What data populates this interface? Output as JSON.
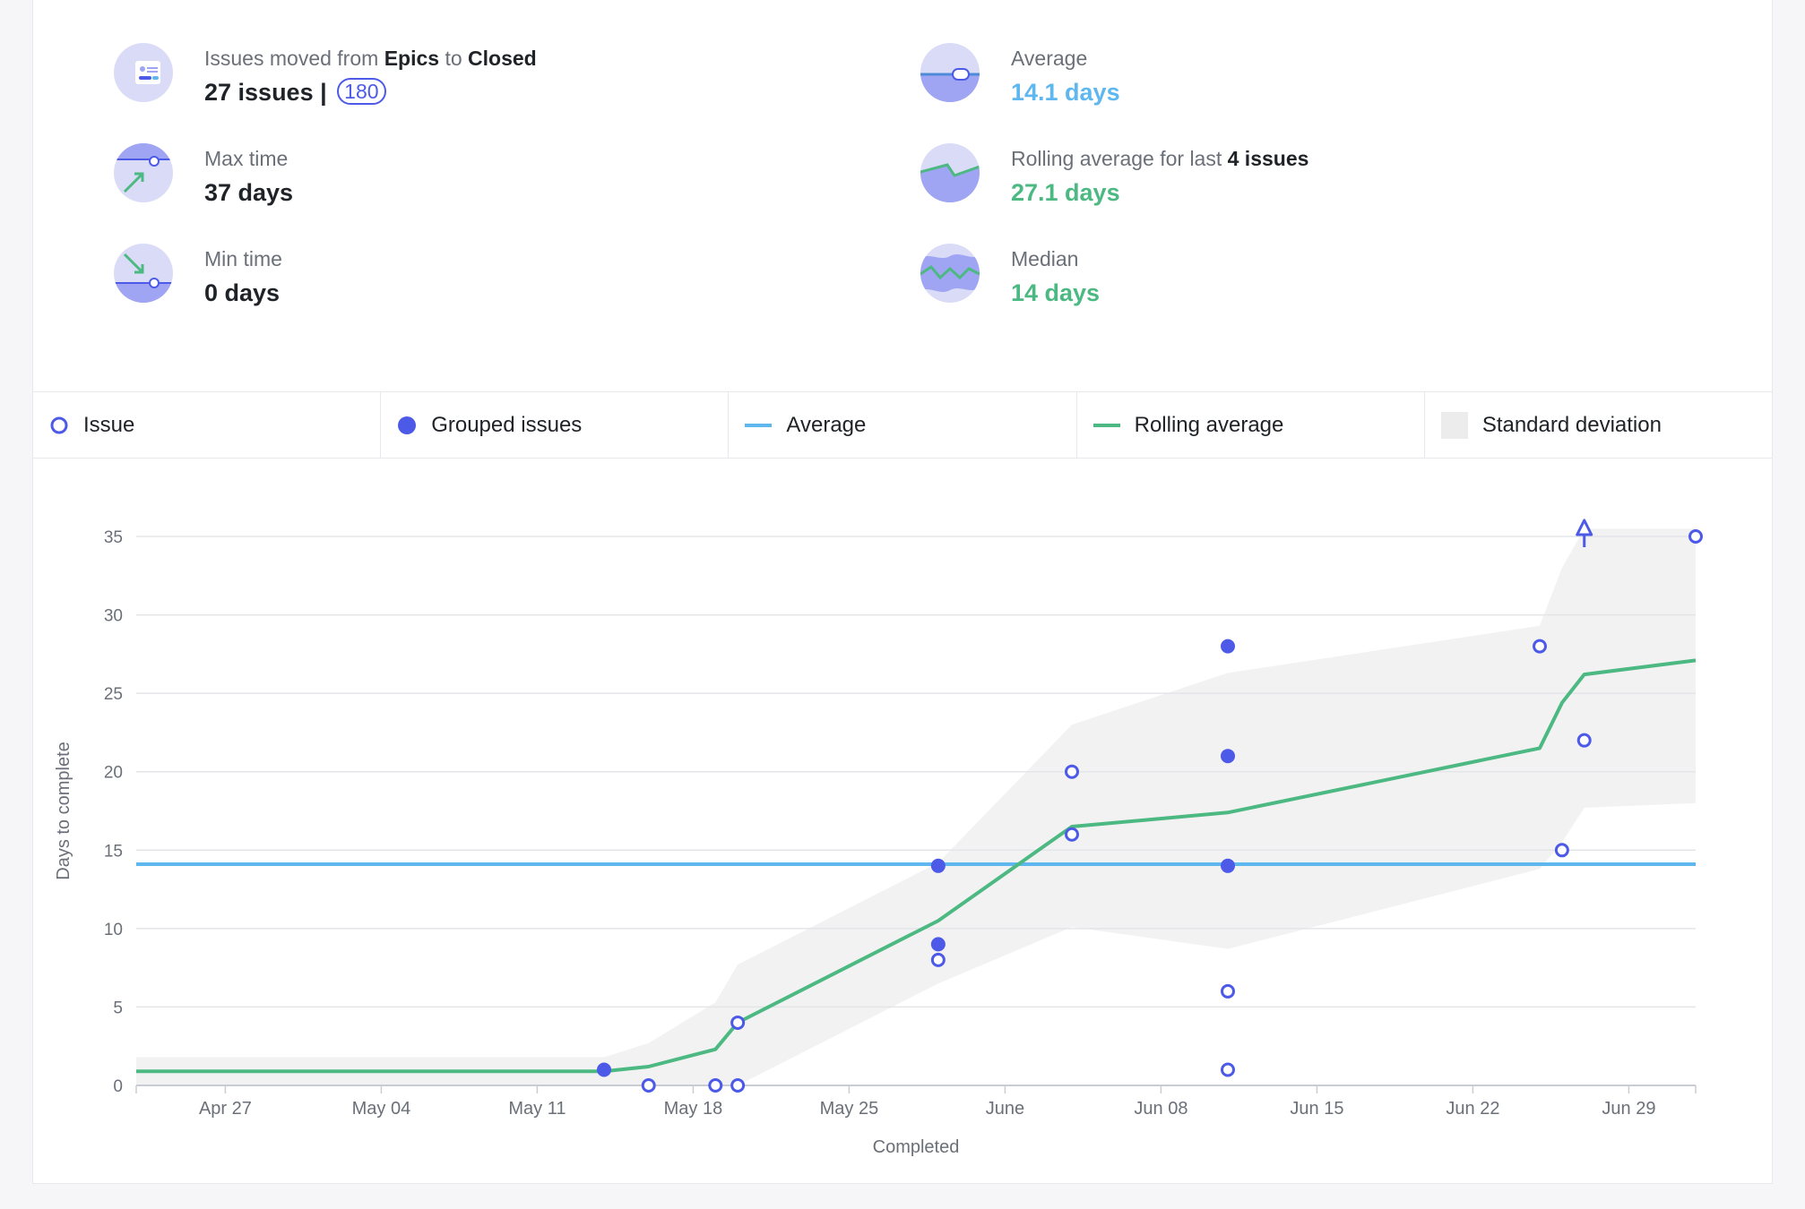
{
  "stats": {
    "moved": {
      "label_pre": "Issues moved from ",
      "label_from": "Epics",
      "label_mid": " to ",
      "label_to": "Closed",
      "value": "27 issues |",
      "badge": "180"
    },
    "max": {
      "label": "Max time",
      "value": "37 days"
    },
    "min": {
      "label": "Min time",
      "value": "0 days"
    },
    "average": {
      "label": "Average",
      "value": "14.1 days"
    },
    "rolling": {
      "label_pre": "Rolling average for last ",
      "label_bold": "4 issues",
      "value": "27.1 days"
    },
    "median": {
      "label": "Median",
      "value": "14 days"
    }
  },
  "colors": {
    "issue": "#4d5ae8",
    "average": "#5eb7ee",
    "rolling": "#4cb882",
    "stddev": "#ececec",
    "icon_bg": "#dadcf7",
    "icon_fill": "#9fa5f3"
  },
  "legend": [
    {
      "label": "Issue",
      "icon": "hollow-circle-icon"
    },
    {
      "label": "Grouped issues",
      "icon": "filled-circle-icon"
    },
    {
      "label": "Average",
      "icon": "blue-line-icon"
    },
    {
      "label": "Rolling average",
      "icon": "green-line-icon"
    },
    {
      "label": "Standard deviation",
      "icon": "gray-square-icon"
    }
  ],
  "chart_data": {
    "type": "scatter",
    "xlabel": "Completed",
    "ylabel": "Days to complete",
    "xlim": [
      "2014-04-23",
      "2014-07-02"
    ],
    "ylim": [
      0,
      35
    ],
    "x_ticks": [
      {
        "date": "2014-04-27",
        "label": "Apr 27"
      },
      {
        "date": "2014-05-04",
        "label": "May 04"
      },
      {
        "date": "2014-05-11",
        "label": "May 11"
      },
      {
        "date": "2014-05-18",
        "label": "May 18"
      },
      {
        "date": "2014-05-25",
        "label": "May 25"
      },
      {
        "date": "2014-06-01",
        "label": "June"
      },
      {
        "date": "2014-06-08",
        "label": "Jun 08"
      },
      {
        "date": "2014-06-15",
        "label": "Jun 15"
      },
      {
        "date": "2014-06-22",
        "label": "Jun 22"
      },
      {
        "date": "2014-06-29",
        "label": "Jun 29"
      }
    ],
    "y_ticks": [
      0,
      5,
      10,
      15,
      20,
      25,
      30,
      35
    ],
    "grid": true,
    "average": 14.1,
    "issues": [
      {
        "x": "2014-05-16",
        "y": 0
      },
      {
        "x": "2014-05-19",
        "y": 0
      },
      {
        "x": "2014-05-20",
        "y": 0
      },
      {
        "x": "2014-05-20",
        "y": 4
      },
      {
        "x": "2014-05-29",
        "y": 8
      },
      {
        "x": "2014-06-04",
        "y": 16
      },
      {
        "x": "2014-06-04",
        "y": 20
      },
      {
        "x": "2014-06-11",
        "y": 1
      },
      {
        "x": "2014-06-11",
        "y": 6
      },
      {
        "x": "2014-06-25",
        "y": 28
      },
      {
        "x": "2014-06-26",
        "y": 15
      },
      {
        "x": "2014-06-27",
        "y": 22
      },
      {
        "x": "2014-07-02",
        "y": 35
      }
    ],
    "grouped": [
      {
        "x": "2014-05-14",
        "y": 1
      },
      {
        "x": "2014-05-29",
        "y": 14
      },
      {
        "x": "2014-05-29",
        "y": 9
      },
      {
        "x": "2014-06-11",
        "y": 28
      },
      {
        "x": "2014-06-11",
        "y": 21
      },
      {
        "x": "2014-06-11",
        "y": 14
      }
    ],
    "outliers": [
      {
        "x": "2014-06-27",
        "y": 37
      }
    ],
    "rolling_average": [
      {
        "x": "2014-04-23",
        "y": 0.9
      },
      {
        "x": "2014-05-14",
        "y": 0.9
      },
      {
        "x": "2014-05-16",
        "y": 1.2
      },
      {
        "x": "2014-05-19",
        "y": 2.3
      },
      {
        "x": "2014-05-20",
        "y": 4
      },
      {
        "x": "2014-05-29",
        "y": 10.5
      },
      {
        "x": "2014-06-04",
        "y": 16.5
      },
      {
        "x": "2014-06-11",
        "y": 17.4
      },
      {
        "x": "2014-06-25",
        "y": 21.5
      },
      {
        "x": "2014-06-26",
        "y": 24.4
      },
      {
        "x": "2014-06-27",
        "y": 26.2
      },
      {
        "x": "2014-07-02",
        "y": 27.1
      }
    ],
    "std_dev_upper": [
      {
        "x": "2014-04-23",
        "y": 1.8
      },
      {
        "x": "2014-05-14",
        "y": 1.8
      },
      {
        "x": "2014-05-16",
        "y": 2.7
      },
      {
        "x": "2014-05-19",
        "y": 5.3
      },
      {
        "x": "2014-05-20",
        "y": 7.7
      },
      {
        "x": "2014-05-29",
        "y": 14.2
      },
      {
        "x": "2014-06-04",
        "y": 23
      },
      {
        "x": "2014-06-11",
        "y": 26.3
      },
      {
        "x": "2014-06-25",
        "y": 29.3
      },
      {
        "x": "2014-06-26",
        "y": 33
      },
      {
        "x": "2014-06-27",
        "y": 35.5
      },
      {
        "x": "2014-07-02",
        "y": 35.5
      }
    ],
    "std_dev_lower": [
      {
        "x": "2014-04-23",
        "y": 0
      },
      {
        "x": "2014-05-19",
        "y": 0
      },
      {
        "x": "2014-05-20",
        "y": 0
      },
      {
        "x": "2014-05-29",
        "y": 6.5
      },
      {
        "x": "2014-06-04",
        "y": 10.1
      },
      {
        "x": "2014-06-11",
        "y": 8.7
      },
      {
        "x": "2014-06-25",
        "y": 13.8
      },
      {
        "x": "2014-06-26",
        "y": 15.5
      },
      {
        "x": "2014-06-27",
        "y": 17.7
      },
      {
        "x": "2014-07-02",
        "y": 18
      }
    ]
  }
}
